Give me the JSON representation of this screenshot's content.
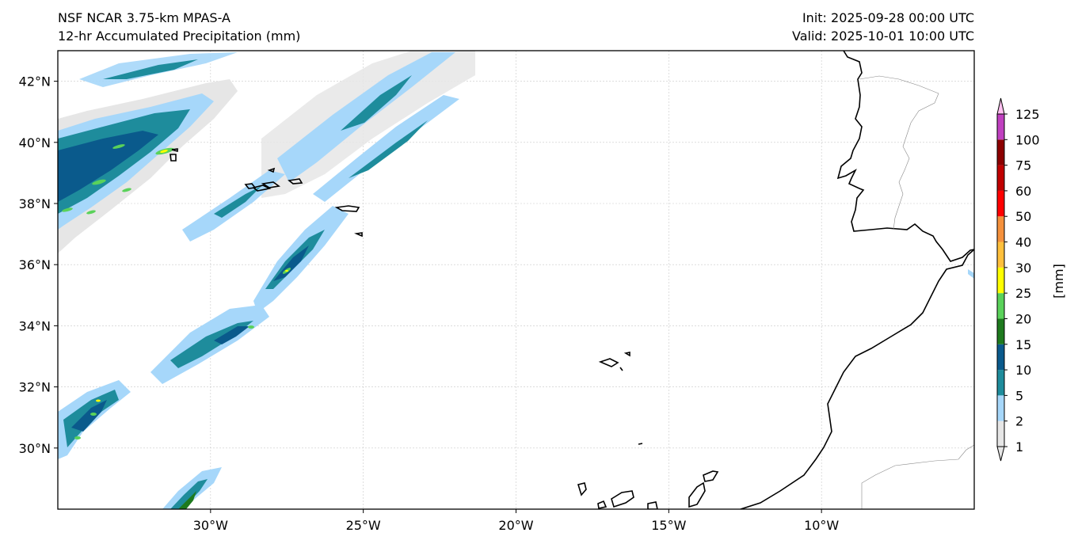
{
  "header": {
    "model": "NSF NCAR 3.75-km MPAS-A",
    "field": "12-hr Accumulated Precipitation (mm)",
    "init": "Init: 2025-09-28 00:00 UTC",
    "valid": "Valid: 2025-10-01 10:00 UTC"
  },
  "map": {
    "projection": "PlateCarree",
    "extent": {
      "lon_min": -35,
      "lon_max": -5,
      "lat_min": 28,
      "lat_max": 43
    },
    "lat_ticks": [
      {
        "value": 42,
        "label": "42°N"
      },
      {
        "value": 40,
        "label": "40°N"
      },
      {
        "value": 38,
        "label": "38°N"
      },
      {
        "value": 36,
        "label": "36°N"
      },
      {
        "value": 34,
        "label": "34°N"
      },
      {
        "value": 32,
        "label": "32°N"
      },
      {
        "value": 30,
        "label": "30°N"
      }
    ],
    "lon_ticks": [
      {
        "value": -30,
        "label": "30°W"
      },
      {
        "value": -25,
        "label": "25°W"
      },
      {
        "value": -20,
        "label": "20°W"
      },
      {
        "value": -15,
        "label": "15°W"
      },
      {
        "value": -10,
        "label": "10°W"
      }
    ],
    "gridlines": true,
    "features": [
      "coastlines",
      "country borders",
      "Azores",
      "Madeira",
      "Canary Islands",
      "Iberian Peninsula",
      "Morocco"
    ]
  },
  "colorbar": {
    "label": "[mm]",
    "extend": "both",
    "levels": [
      {
        "value": "1",
        "color": "#e6e6e6"
      },
      {
        "value": "2",
        "color": "#a6d7fa"
      },
      {
        "value": "5",
        "color": "#1e8c9c"
      },
      {
        "value": "10",
        "color": "#0a5a8c"
      },
      {
        "value": "15",
        "color": "#1e7a1e"
      },
      {
        "value": "20",
        "color": "#5ad25a"
      },
      {
        "value": "25",
        "color": "#ffff00"
      },
      {
        "value": "30",
        "color": "#ffc03c"
      },
      {
        "value": "40",
        "color": "#f5913c"
      },
      {
        "value": "50",
        "color": "#ff0000"
      },
      {
        "value": "60",
        "color": "#c00000"
      },
      {
        "value": "75",
        "color": "#8c0000"
      },
      {
        "value": "100",
        "color": "#c040c0"
      },
      {
        "value": "125",
        "color": "#ffc0f0"
      }
    ]
  }
}
